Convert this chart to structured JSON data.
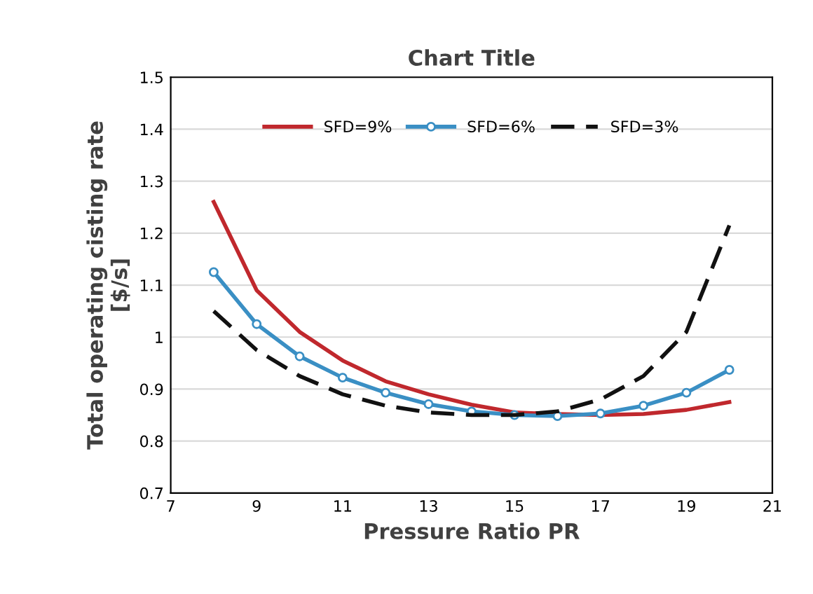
{
  "chart_data": {
    "type": "line",
    "title": "Chart Title",
    "xlabel": "Pressure Ratio PR",
    "ylabel": "Total operating cisting rate\n[$/s]",
    "x": [
      8,
      9,
      10,
      11,
      12,
      13,
      14,
      15,
      16,
      17,
      18,
      19,
      20
    ],
    "series": [
      {
        "name": "SFD=9%",
        "color": "#c0282d",
        "marker": "none",
        "line_style": "solid",
        "values": [
          1.26,
          1.09,
          1.01,
          0.955,
          0.915,
          0.89,
          0.87,
          0.855,
          0.852,
          0.85,
          0.852,
          0.86,
          0.875
        ]
      },
      {
        "name": "SFD=6%",
        "color": "#3a8fc4",
        "marker": "circle",
        "line_style": "solid",
        "values": [
          1.125,
          1.025,
          0.963,
          0.922,
          0.893,
          0.871,
          0.857,
          0.85,
          0.848,
          0.853,
          0.868,
          0.893,
          0.937
        ]
      },
      {
        "name": "SFD=3%",
        "color": "#111111",
        "marker": "none",
        "line_style": "dashed",
        "values": [
          1.05,
          0.975,
          0.925,
          0.89,
          0.868,
          0.855,
          0.85,
          0.85,
          0.857,
          0.88,
          0.925,
          1.01,
          1.215
        ]
      }
    ],
    "xlim": [
      7,
      21
    ],
    "xticks": [
      7,
      9,
      11,
      13,
      15,
      17,
      19,
      21
    ],
    "ylim": [
      0.7,
      1.5
    ],
    "yticks": [
      0.7,
      0.8,
      0.9,
      1,
      1.1,
      1.2,
      1.3,
      1.4,
      1.5
    ],
    "grid": "y",
    "legend": "top"
  }
}
